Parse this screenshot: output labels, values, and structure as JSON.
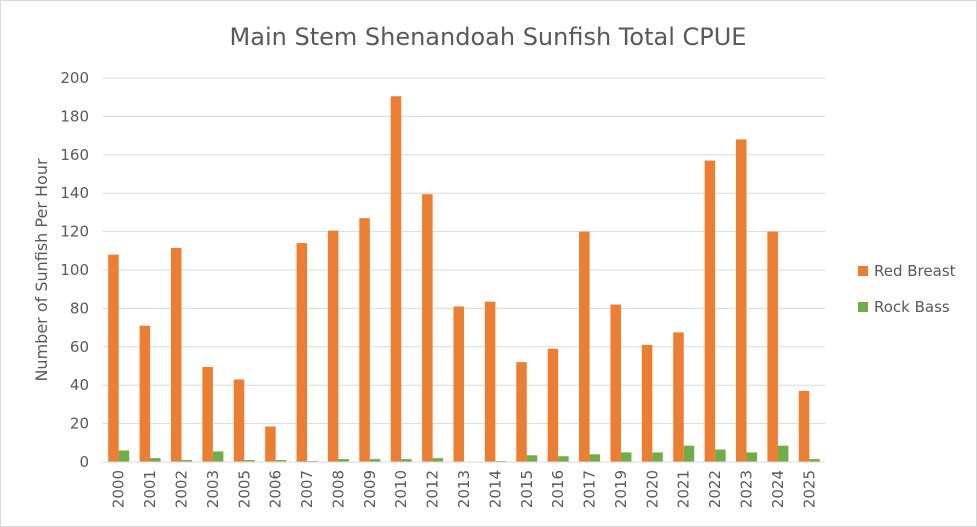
{
  "chart_data": {
    "type": "bar",
    "title": "Main Stem Shenandoah Sunfish Total CPUE",
    "xlabel": "",
    "ylabel": "Number of Sunfish Per Hour",
    "ylim": [
      0,
      200
    ],
    "yticks": [
      0,
      20,
      40,
      60,
      80,
      100,
      120,
      140,
      160,
      180,
      200
    ],
    "grid": true,
    "legend_position": "right",
    "categories": [
      "2000",
      "2001",
      "2002",
      "2003",
      "2005",
      "2006",
      "2007",
      "2008",
      "2009",
      "2010",
      "2012",
      "2013",
      "2014",
      "2015",
      "2016",
      "2017",
      "2019",
      "2020",
      "2021",
      "2022",
      "2023",
      "2024",
      "2025"
    ],
    "series": [
      {
        "name": "Red Breast",
        "color": "#ed7d31",
        "values": [
          108,
          71,
          111.5,
          49.5,
          43,
          18.5,
          114,
          120.5,
          127,
          190.5,
          139.5,
          81,
          83.5,
          52,
          59,
          120,
          82,
          61,
          67.5,
          157,
          168,
          120,
          37
        ]
      },
      {
        "name": "Rock Bass",
        "color": "#70ad47",
        "values": [
          6,
          2,
          1,
          5.5,
          1,
          1,
          0.5,
          1.5,
          1.5,
          1.5,
          2,
          0,
          0.5,
          3.5,
          3,
          4,
          5,
          5,
          8.5,
          6.5,
          5,
          8.5,
          1.5
        ]
      }
    ]
  }
}
